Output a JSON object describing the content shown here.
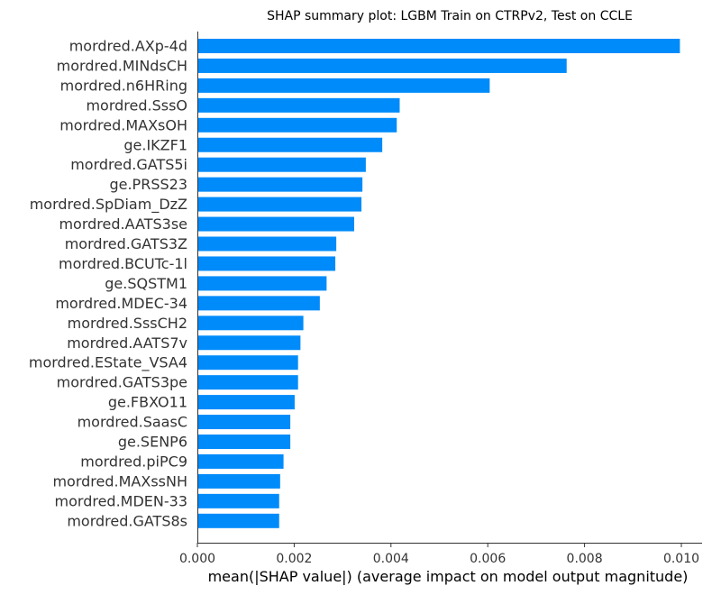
{
  "chart_data": {
    "type": "bar",
    "orientation": "horizontal",
    "title": "SHAP summary plot: LGBM Train on CTRPv2, Test on CCLE",
    "xlabel": "mean(|SHAP value|) (average impact on model output magnitude)",
    "ylabel": "",
    "xlim": [
      0,
      0.0105
    ],
    "xticks": [
      "0.000",
      "0.002",
      "0.004",
      "0.006",
      "0.008",
      "0.010"
    ],
    "grid": false,
    "bar_color": "#008bfb",
    "categories": [
      "mordred.AXp-4d",
      "mordred.MINdsCH",
      "mordred.n6HRing",
      "mordred.SssO",
      "mordred.MAXsOH",
      "ge.IKZF1",
      "mordred.GATS5i",
      "ge.PRSS23",
      "mordred.SpDiam_DzZ",
      "mordred.AATS3se",
      "mordred.GATS3Z",
      "mordred.BCUTc-1l",
      "ge.SQSTM1",
      "mordred.MDEC-34",
      "mordred.SssCH2",
      "mordred.AATS7v",
      "mordred.EState_VSA4",
      "mordred.GATS3pe",
      "ge.FBXO11",
      "mordred.SaasC",
      "ge.SENP6",
      "mordred.piPC9",
      "mordred.MAXssNH",
      "mordred.MDEN-33",
      "mordred.GATS8s"
    ],
    "values": [
      0.00997,
      0.00763,
      0.00604,
      0.00418,
      0.00412,
      0.00382,
      0.00348,
      0.00341,
      0.00339,
      0.00324,
      0.00287,
      0.00285,
      0.00267,
      0.00253,
      0.00219,
      0.00213,
      0.00208,
      0.00208,
      0.00201,
      0.00192,
      0.00192,
      0.00178,
      0.00171,
      0.00169,
      0.00169
    ]
  }
}
